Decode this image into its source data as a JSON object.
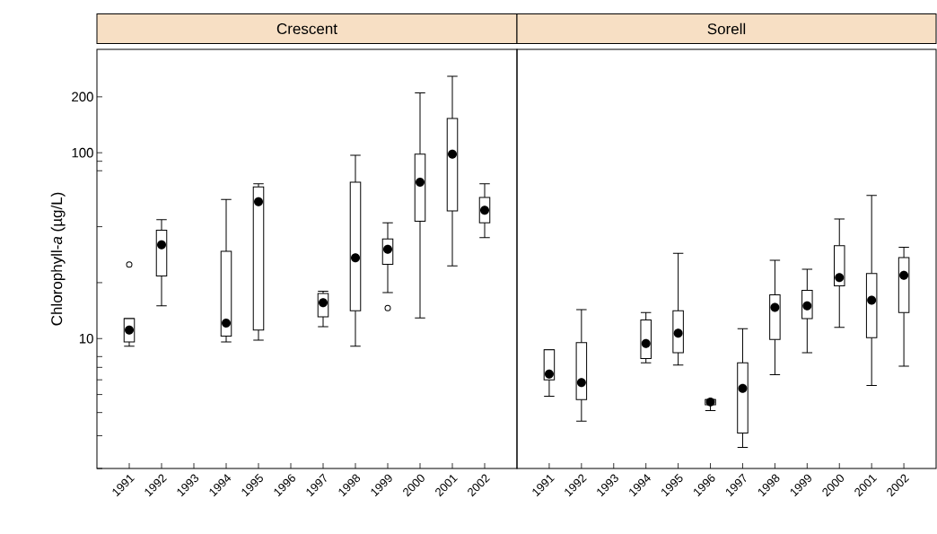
{
  "chart_data": [
    {
      "type": "box",
      "title": "Crescent",
      "ylabel": "Chlorophyll-*a*  (µg/L)",
      "log": true,
      "ylim": [
        2,
        360
      ],
      "yticks": [
        {
          "value": 2,
          "label": null
        },
        {
          "value": 3,
          "label": null
        },
        {
          "value": 4,
          "label": null
        },
        {
          "value": 5,
          "label": null
        },
        {
          "value": 6,
          "label": null
        },
        {
          "value": 7,
          "label": null
        },
        {
          "value": 8,
          "label": null
        },
        10,
        {
          "value": 20,
          "label": null
        },
        {
          "value": 40,
          "label": null
        },
        {
          "value": 80,
          "label": null
        },
        {
          "value": 90,
          "label": null
        },
        100,
        200
      ],
      "categories": [
        "1991",
        "1992",
        "1993",
        "1994",
        "1995",
        "1996",
        "1997",
        "1998",
        "1999",
        "2000",
        "2001",
        "2002"
      ],
      "boxes": [
        {
          "low": 9.1,
          "q1": 9.6,
          "median": 11.1,
          "q3": 12.8,
          "high": 12.8,
          "outliers": [
            25
          ]
        },
        {
          "low": 15,
          "q1": 21.7,
          "median": 32,
          "q3": 38.3,
          "high": 43.7
        },
        null,
        {
          "low": 9.6,
          "q1": 10.3,
          "median": 12.1,
          "q3": 29.5,
          "high": 56
        },
        {
          "low": 9.8,
          "q1": 11.1,
          "median": 54.5,
          "q3": 65.5,
          "high": 68
        },
        null,
        {
          "low": 11.6,
          "q1": 13.1,
          "median": 15.6,
          "q3": 17.5,
          "high": 18
        },
        {
          "low": 9.1,
          "q1": 14.1,
          "median": 27.2,
          "q3": 69.4,
          "high": 97
        },
        {
          "low": 17.7,
          "q1": 25.1,
          "median": 30.2,
          "q3": 34.4,
          "high": 42,
          "outliers": [
            14.6
          ]
        },
        {
          "low": 12.9,
          "q1": 42.8,
          "median": 69.4,
          "q3": 98.4,
          "high": 210
        },
        {
          "low": 24.6,
          "q1": 48.7,
          "median": 98.4,
          "q3": 153,
          "high": 258
        },
        {
          "low": 34.9,
          "q1": 42,
          "median": 49.1,
          "q3": 57.5,
          "high": 68
        }
      ]
    },
    {
      "type": "box",
      "title": "Sorell",
      "log": true,
      "ylim": [
        2,
        360
      ],
      "tick_labels": "x",
      "categories": [
        "1991",
        "1992",
        "1993",
        "1994",
        "1995",
        "1996",
        "1997",
        "1998",
        "1999",
        "2000",
        "2001",
        "2002"
      ],
      "boxes": [
        {
          "low": 4.9,
          "q1": 6.0,
          "median": 6.45,
          "q3": 8.7,
          "high": 8.7
        },
        {
          "low": 3.6,
          "q1": 4.7,
          "median": 5.8,
          "q3": 9.5,
          "high": 14.3
        },
        null,
        {
          "low": 7.4,
          "q1": 7.8,
          "median": 9.4,
          "q3": 12.6,
          "high": 13.8
        },
        {
          "low": 7.2,
          "q1": 8.4,
          "median": 10.7,
          "q3": 14.1,
          "high": 28.8
        },
        {
          "low": 4.1,
          "q1": 4.4,
          "median": 4.56,
          "q3": 4.7,
          "high": 4.7
        },
        {
          "low": 2.6,
          "q1": 3.1,
          "median": 5.4,
          "q3": 7.4,
          "high": 11.3
        },
        {
          "low": 6.4,
          "q1": 9.9,
          "median": 14.7,
          "q3": 17.2,
          "high": 26.4
        },
        {
          "low": 8.4,
          "q1": 12.8,
          "median": 15,
          "q3": 18.2,
          "high": 23.6
        },
        {
          "low": 11.5,
          "q1": 19.2,
          "median": 21.3,
          "q3": 31.6,
          "high": 44
        },
        {
          "low": 5.6,
          "q1": 10.1,
          "median": 16.1,
          "q3": 22.4,
          "high": 59
        },
        {
          "low": 7.1,
          "q1": 13.8,
          "median": 21.9,
          "q3": 27.3,
          "high": 31
        }
      ]
    }
  ]
}
